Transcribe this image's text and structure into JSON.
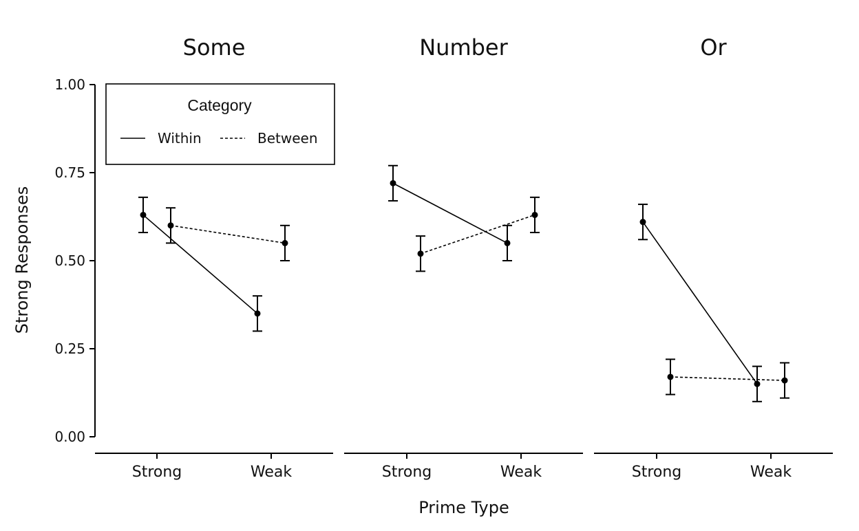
{
  "chart_data": {
    "type": "line",
    "ylabel": "Strong Responses",
    "xlabel": "Prime Type",
    "ylim": [
      0,
      1
    ],
    "y_ticks": [
      "0.00",
      "0.25",
      "0.50",
      "0.75",
      "1.00"
    ],
    "y_tick_values": [
      0,
      0.25,
      0.5,
      0.75,
      1.0
    ],
    "categories": [
      "Strong",
      "Weak"
    ],
    "legend": {
      "title": "Category",
      "placement": "top-left (inside first panel)",
      "entries": [
        {
          "name": "Within",
          "linestyle": "solid"
        },
        {
          "name": "Between",
          "linestyle": "dotted"
        }
      ]
    },
    "error_bars": true,
    "grid": false,
    "colors": {
      "line": "#000000",
      "background": "#ffffff"
    },
    "panels": [
      {
        "title": "Some",
        "series": [
          {
            "name": "Within",
            "values": [
              0.63,
              0.35
            ],
            "errors": [
              0.05,
              0.05
            ]
          },
          {
            "name": "Between",
            "values": [
              0.6,
              0.55
            ],
            "errors": [
              0.05,
              0.05
            ]
          }
        ]
      },
      {
        "title": "Number",
        "series": [
          {
            "name": "Within",
            "values": [
              0.72,
              0.55
            ],
            "errors": [
              0.05,
              0.05
            ]
          },
          {
            "name": "Between",
            "values": [
              0.52,
              0.63
            ],
            "errors": [
              0.05,
              0.05
            ]
          }
        ]
      },
      {
        "title": "Or",
        "series": [
          {
            "name": "Within",
            "values": [
              0.61,
              0.15
            ],
            "errors": [
              0.05,
              0.05
            ]
          },
          {
            "name": "Between",
            "values": [
              0.17,
              0.16
            ],
            "errors": [
              0.05,
              0.05
            ]
          }
        ]
      }
    ]
  }
}
